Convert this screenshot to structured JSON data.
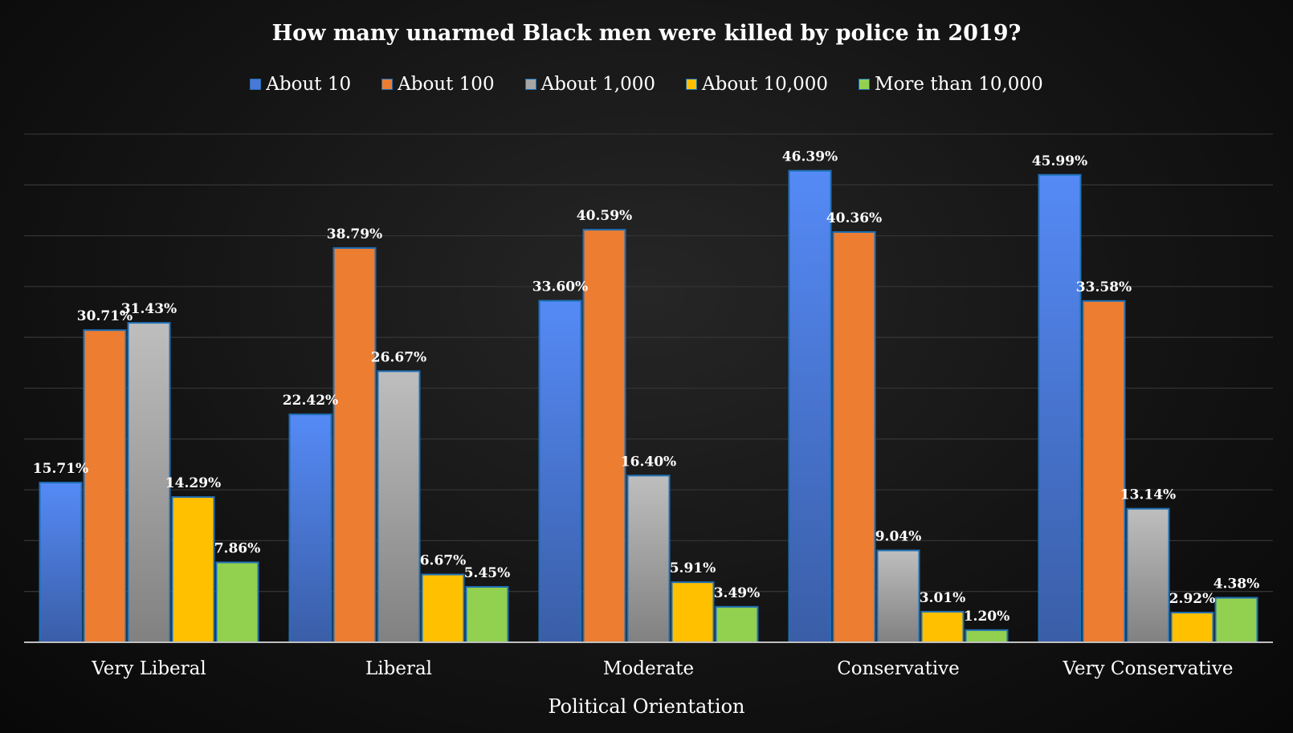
{
  "chart_data": {
    "type": "bar",
    "title": "How many unarmed Black men were killed by police in 2019?",
    "xlabel": "Political Orientation",
    "ylabel": "",
    "ylim": [
      0,
      50
    ],
    "grid": true,
    "legend_position": "top",
    "categories": [
      "Very Liberal",
      "Liberal",
      "Moderate",
      "Conservative",
      "Very Conservative"
    ],
    "series": [
      {
        "name": "About 10",
        "color": "#4a78d6",
        "values": [
          15.71,
          22.42,
          33.6,
          46.39,
          45.99
        ],
        "labels": [
          "15.71%",
          "22.42%",
          "33.60%",
          "46.39%",
          "45.99%"
        ]
      },
      {
        "name": "About 100",
        "color": "#ed7d31",
        "values": [
          30.71,
          38.79,
          40.59,
          40.36,
          33.58
        ],
        "labels": [
          "30.71%",
          "38.79%",
          "40.59%",
          "40.36%",
          "33.58%"
        ]
      },
      {
        "name": "About 1,000",
        "color": "#a5a5a5",
        "values": [
          31.43,
          26.67,
          16.4,
          9.04,
          13.14
        ],
        "labels": [
          "31.43%",
          "26.67%",
          "16.40%",
          "9.04%",
          "13.14%"
        ]
      },
      {
        "name": "About 10,000",
        "color": "#ffc000",
        "values": [
          14.29,
          6.67,
          5.91,
          3.01,
          2.92
        ],
        "labels": [
          "14.29%",
          "6.67%",
          "5.91%",
          "3.01%",
          "2.92%"
        ]
      },
      {
        "name": "More than 10,000",
        "color": "#92d050",
        "values": [
          7.86,
          5.45,
          3.49,
          1.2,
          4.38
        ],
        "labels": [
          "7.86%",
          "5.45%",
          "3.49%",
          "1.20%",
          "4.38%"
        ]
      }
    ]
  }
}
